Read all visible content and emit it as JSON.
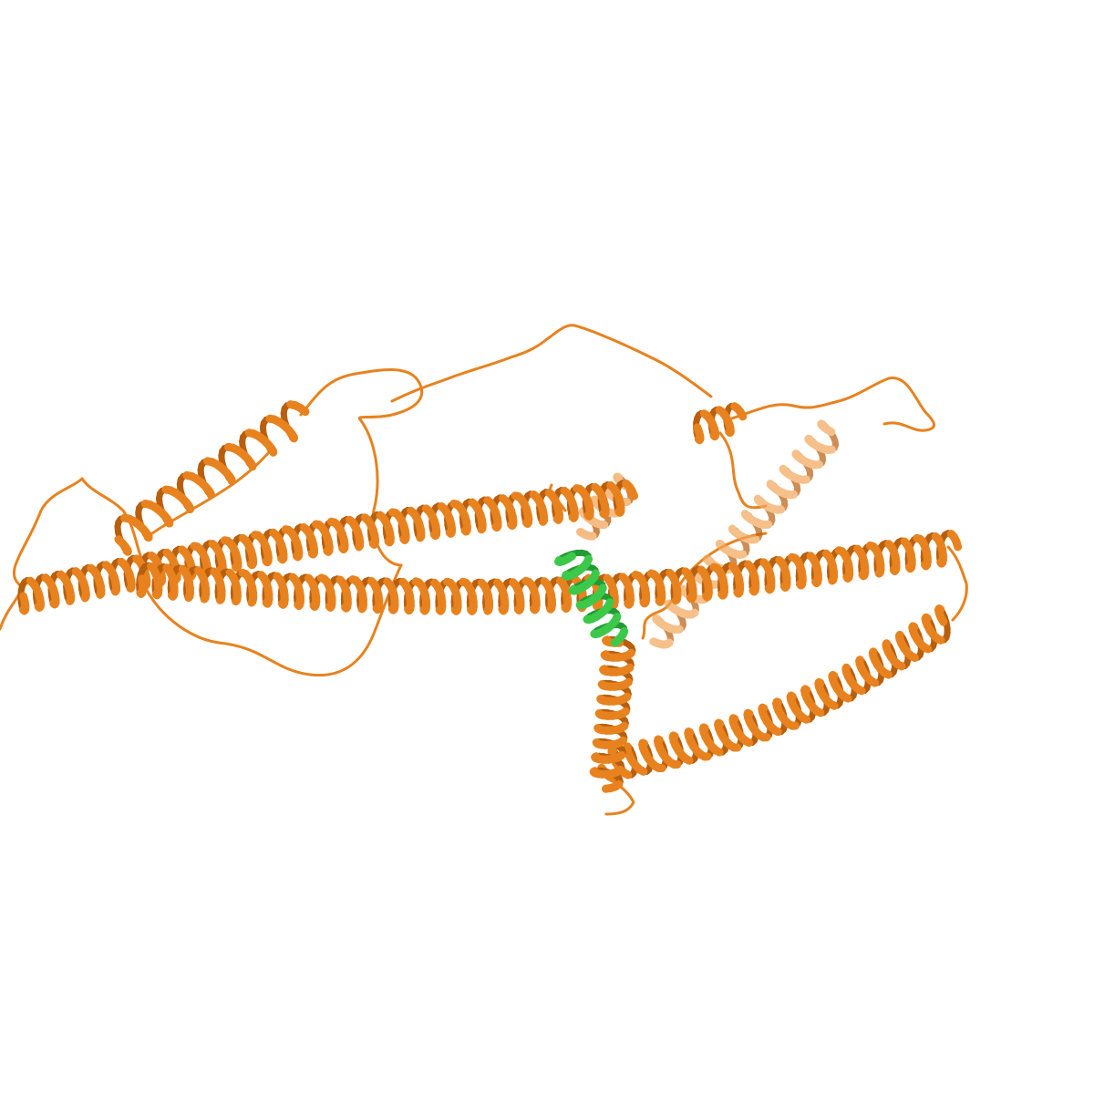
{
  "scene": {
    "type": "protein cartoon render (ribbon representation)",
    "background": "#ffffff",
    "colors": {
      "chain": "#e8821e",
      "chain_dark": "#b85f0f",
      "chain_light": "#f3a65a",
      "highlight": "#3cc94a",
      "highlight_dark": "#239a33"
    }
  }
}
